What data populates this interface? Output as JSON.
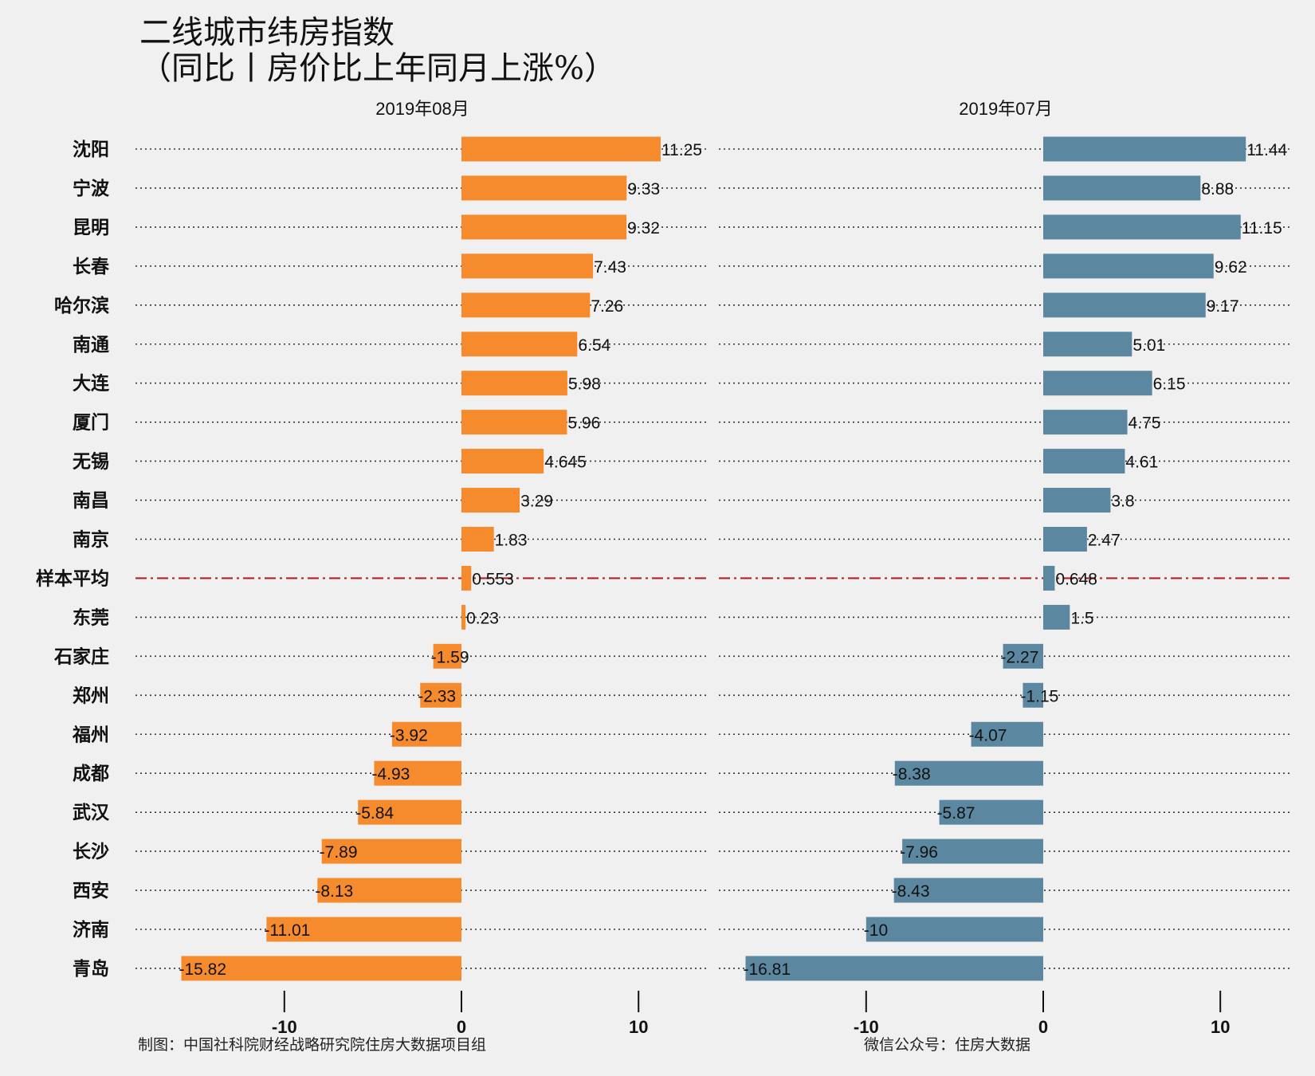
{
  "title_line1": "二线城市纬房指数",
  "title_line2": "（同比丨房价比上年同月上涨%）",
  "footer_left": "制图：中国社科院财经战略研究院住房大数据项目组",
  "footer_right": "微信公众号：住房大数据",
  "chart_data": [
    {
      "type": "bar",
      "orientation": "horizontal",
      "title": "2019年08月",
      "color": "#f68b2e",
      "categories": [
        "沈阳",
        "宁波",
        "昆明",
        "长春",
        "哈尔滨",
        "南通",
        "大连",
        "厦门",
        "无锡",
        "南昌",
        "南京",
        "样本平均",
        "东莞",
        "石家庄",
        "郑州",
        "福州",
        "成都",
        "武汉",
        "长沙",
        "西安",
        "济南",
        "青岛"
      ],
      "values": [
        11.25,
        9.33,
        9.32,
        7.43,
        7.26,
        6.54,
        5.98,
        5.96,
        4.645,
        3.29,
        1.83,
        0.553,
        0.23,
        -1.59,
        -2.33,
        -3.92,
        -4.93,
        -5.84,
        -7.89,
        -8.13,
        -11.01,
        -15.82
      ],
      "labels": [
        "11.25",
        "9.33",
        "9.32",
        "7.43",
        "7.26",
        "6.54",
        "5.98",
        "5.96",
        "4.645",
        "3.29",
        "1.83",
        "0.553",
        "0.23",
        "-1.59",
        "-2.33",
        "-3.92",
        "-4.93",
        "-5.84",
        "-7.89",
        "-8.13",
        "-11.01",
        "-15.82"
      ],
      "xlim": [
        -18.2,
        14
      ],
      "xticks": [
        -10,
        0,
        10
      ],
      "xtick_labels": [
        "-10",
        "0",
        "10"
      ],
      "reference_line_category": "样本平均",
      "reference_line_color": "#b22222",
      "grid": "dotted horizontal"
    },
    {
      "type": "bar",
      "orientation": "horizontal",
      "title": "2019年07月",
      "color": "#5b87a1",
      "categories": [
        "沈阳",
        "宁波",
        "昆明",
        "长春",
        "哈尔滨",
        "南通",
        "大连",
        "厦门",
        "无锡",
        "南昌",
        "南京",
        "样本平均",
        "东莞",
        "石家庄",
        "郑州",
        "福州",
        "成都",
        "武汉",
        "长沙",
        "西安",
        "济南",
        "青岛"
      ],
      "values": [
        11.44,
        8.88,
        11.15,
        9.62,
        9.17,
        5.01,
        6.15,
        4.75,
        4.61,
        3.8,
        2.47,
        0.648,
        1.5,
        -2.27,
        -1.15,
        -4.07,
        -8.38,
        -5.87,
        -7.96,
        -8.43,
        -10,
        -16.81
      ],
      "labels": [
        "11.44",
        "8.88",
        "11.15",
        "9.62",
        "9.17",
        "5.01",
        "6.15",
        "4.75",
        "4.61",
        "3.8",
        "2.47",
        "0.648",
        "1.5",
        "-2.27",
        "-1.15",
        "-4.07",
        "-8.38",
        "-5.87",
        "-7.96",
        "-8.43",
        "-10",
        "-16.81"
      ],
      "xlim": [
        -18.2,
        14
      ],
      "xticks": [
        -10,
        0,
        10
      ],
      "xtick_labels": [
        "-10",
        "0",
        "10"
      ],
      "reference_line_category": "样本平均",
      "reference_line_color": "#b22222",
      "grid": "dotted horizontal"
    }
  ]
}
